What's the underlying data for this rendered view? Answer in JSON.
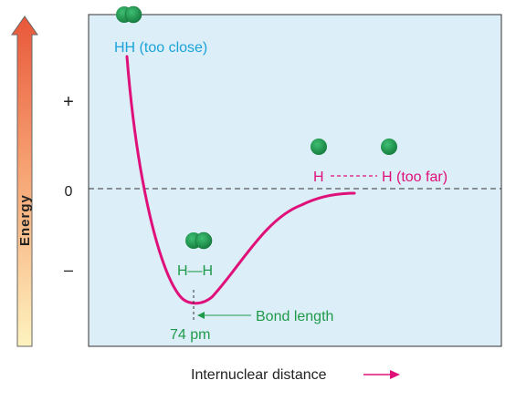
{
  "axis": {
    "y_label": "Energy",
    "x_label": "Internuclear distance",
    "ticks": {
      "plus": "+",
      "zero": "0",
      "minus": "–"
    }
  },
  "labels": {
    "too_close": "HH (too close)",
    "too_far_left": "H",
    "too_far_right": "H (too far)",
    "bonded": "H—H",
    "bond_length": "Bond length",
    "distance": "74 pm"
  },
  "colors": {
    "plot_bg": "#dceef8",
    "curve": "#e0107a",
    "cyan_label": "#1aa3d9",
    "green_label": "#1f9a4a",
    "atom": "#1f9a55",
    "arrow_top": "#e8573a",
    "arrow_bottom": "#fdf3bf"
  }
}
